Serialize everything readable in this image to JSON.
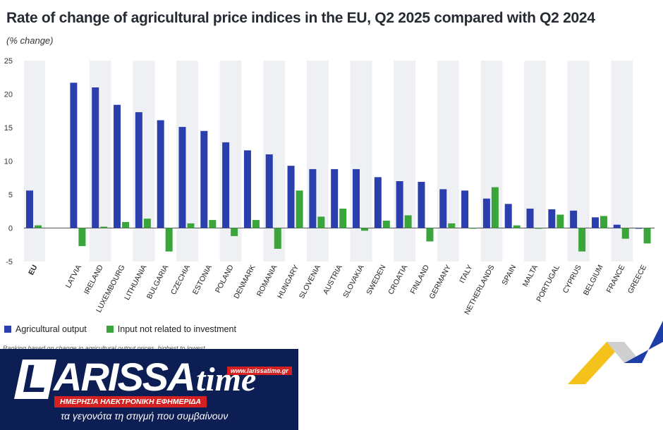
{
  "header": {
    "title": "Rate of change of agricultural price indices in the EU, Q2 2025 compared with Q2 2024",
    "subtitle": "(% change)"
  },
  "legend": {
    "items": [
      {
        "label": "Agricultural output",
        "color": "#2a3fad"
      },
      {
        "label": "Input not related to investment",
        "color": "#3aa53a"
      }
    ]
  },
  "footnote": "Ranking based on change in agricultural output prices, highest to lowest.",
  "logo": {
    "letter": "L",
    "name": "ARISSA",
    "suffix": "time",
    "url": "www.larissatime.gr",
    "tagline": "ΗΜΕΡΗΣΙΑ ΗΛΕΚΤΡΟΝΙΚΗ ΕΦΗΜΕΡΙΔΑ",
    "slogan": "τα γεγονότα τη στιγμή που συμβαίνουν"
  },
  "chart_data": {
    "type": "bar",
    "title": "Rate of change of agricultural price indices in the EU, Q2 2025 compared with Q2 2024",
    "ylabel": "(% change)",
    "ylim": [
      -5,
      25
    ],
    "yticks": [
      25,
      20,
      15,
      10,
      5,
      0,
      -5
    ],
    "grid": false,
    "legend_position": "bottom-left",
    "categories": [
      "EU",
      "LATVIA",
      "IRELAND",
      "LUXEMBOURG",
      "LITHUANIA",
      "BULGARIA",
      "CZECHIA",
      "ESTONIA",
      "POLAND",
      "DENMARK",
      "ROMANIA",
      "HUNGARY",
      "SLOVENIA",
      "AUSTRIA",
      "SLOVAKIA",
      "SWEDEN",
      "CROATIA",
      "FINLAND",
      "GERMANY",
      "ITALY",
      "NETHERLANDS",
      "SPAIN",
      "MALTA",
      "PORTUGAL",
      "CYPRUS",
      "BELGIUM",
      "FRANCE",
      "GREECE"
    ],
    "series": [
      {
        "name": "Agricultural output",
        "color": "#2a3fad",
        "values": [
          5.6,
          21.7,
          21.0,
          18.4,
          17.3,
          16.1,
          15.1,
          14.5,
          12.8,
          11.6,
          11.0,
          9.3,
          8.8,
          8.8,
          8.8,
          7.6,
          7.0,
          6.9,
          5.8,
          5.6,
          4.4,
          3.6,
          2.9,
          2.8,
          2.6,
          1.6,
          0.5,
          -0.1
        ]
      },
      {
        "name": "Input not related to investment",
        "color": "#3aa53a",
        "values": [
          0.4,
          -2.7,
          0.2,
          0.9,
          1.4,
          -3.5,
          0.7,
          1.2,
          -1.2,
          1.2,
          -3.1,
          5.6,
          1.7,
          2.9,
          -0.4,
          1.1,
          1.9,
          -2.0,
          0.7,
          0.0,
          6.1,
          0.4,
          -0.1,
          2.0,
          -3.5,
          1.8,
          -1.6,
          -2.3
        ]
      }
    ]
  }
}
